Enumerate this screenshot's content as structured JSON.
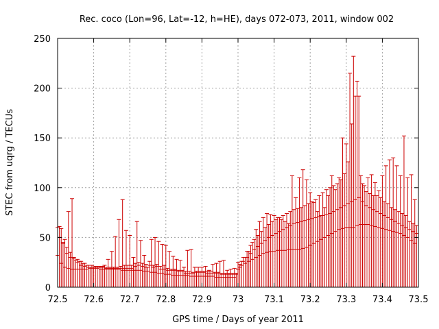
{
  "chart_data": {
    "type": "errorbar",
    "title": "Rec. coco (Lon=96, Lat=-12, h=HE), days 072-073, 2011, window 002",
    "xlabel": "GPS time / Days of year 2011",
    "ylabel": "STEC from uqrg / TECUs",
    "xlim": [
      72.5,
      73.5
    ],
    "ylim": [
      0,
      250
    ],
    "xticks": [
      "72.5",
      "72.6",
      "72.7",
      "72.8",
      "72.9",
      "73",
      "73.1",
      "73.2",
      "73.3",
      "73.4",
      "73.5"
    ],
    "yticks": [
      "0",
      "50",
      "100",
      "150",
      "200",
      "250"
    ],
    "grid": true,
    "color": "#cc0000",
    "series": [
      {
        "x": [
          72.5,
          72.51,
          72.52,
          72.53,
          72.54,
          72.55,
          72.56,
          72.57,
          72.58,
          72.59,
          72.6,
          72.61,
          72.62,
          72.63,
          72.64,
          72.65,
          72.66,
          72.67,
          72.68,
          72.69,
          72.7,
          72.71,
          72.72,
          72.73,
          72.74,
          72.75,
          72.76,
          72.77,
          72.78,
          72.79,
          72.8,
          72.81,
          72.82,
          72.83,
          72.84,
          72.85,
          72.86,
          72.87,
          72.88,
          72.89,
          72.9,
          72.91,
          72.92,
          72.93,
          72.94,
          72.95,
          72.96,
          72.97,
          72.98,
          72.99
        ],
        "y": [
          32,
          24,
          20,
          19,
          18,
          18,
          18,
          18,
          18,
          19,
          19,
          19,
          18,
          18,
          18,
          18,
          18,
          18,
          17,
          17,
          17,
          17,
          17,
          17,
          16,
          16,
          15,
          15,
          14,
          14,
          13,
          13,
          12,
          12,
          12,
          12,
          12,
          11,
          11,
          11,
          11,
          11,
          11,
          11,
          10,
          10,
          10,
          10,
          10,
          10
        ],
        "ymax": [
          60,
          59,
          48,
          76,
          89,
          27,
          26,
          24,
          22,
          20,
          20,
          21,
          21,
          22,
          28,
          36,
          51,
          68,
          88,
          57,
          52,
          30,
          66,
          47,
          32,
          20,
          48,
          50,
          46,
          43,
          42,
          36,
          31,
          28,
          27,
          20,
          37,
          38,
          20,
          20,
          20,
          21,
          17,
          23,
          24,
          26,
          27,
          17,
          18,
          19
        ]
      },
      {
        "x": [
          72.505,
          72.515,
          72.525,
          72.535,
          72.545,
          72.555,
          72.565,
          72.575,
          72.585,
          72.595,
          72.605,
          72.615,
          72.625,
          72.635,
          72.645,
          72.655,
          72.665,
          72.675,
          72.685,
          72.695,
          72.705,
          72.715,
          72.725,
          72.735,
          72.745,
          72.755,
          72.765,
          72.775,
          72.785,
          72.795,
          72.805,
          72.815,
          72.825,
          72.835,
          72.845,
          72.855,
          72.865,
          72.875,
          72.885,
          72.895,
          72.905,
          72.915,
          72.925,
          72.935,
          72.945,
          72.955,
          72.965,
          72.975,
          72.985,
          72.995
        ],
        "y": [
          50,
          45,
          34,
          30,
          29,
          25,
          22,
          21,
          20,
          20,
          20,
          20,
          20,
          19,
          19,
          19,
          19,
          19,
          19,
          19,
          19,
          21,
          22,
          21,
          20,
          22,
          20,
          21,
          18,
          18,
          17,
          17,
          17,
          16,
          16,
          14,
          14,
          14,
          15,
          15,
          15,
          14,
          14,
          14,
          14,
          13,
          13,
          13,
          13,
          13
        ],
        "ymax": [
          61,
          44,
          40,
          35,
          30,
          28,
          26,
          24,
          22,
          22,
          21,
          21,
          21,
          20,
          20,
          20,
          20,
          21,
          22,
          22,
          22,
          24,
          25,
          24,
          23,
          26,
          22,
          23,
          21,
          22,
          19,
          18,
          18,
          17,
          17,
          16,
          16,
          15,
          16,
          16,
          16,
          16,
          16,
          15,
          15,
          14,
          14,
          14,
          14,
          14
        ]
      },
      {
        "x": [
          73.0,
          73.01,
          73.02,
          73.03,
          73.04,
          73.05,
          73.06,
          73.07,
          73.08,
          73.09,
          73.1,
          73.11,
          73.12,
          73.13,
          73.14,
          73.15,
          73.16,
          73.17,
          73.18,
          73.19,
          73.2,
          73.21,
          73.22,
          73.23,
          73.24,
          73.25,
          73.26,
          73.27,
          73.28,
          73.29,
          73.3,
          73.31,
          73.32,
          73.33,
          73.34,
          73.35,
          73.36,
          73.37,
          73.38,
          73.39,
          73.4,
          73.41,
          73.42,
          73.43,
          73.44,
          73.45,
          73.46,
          73.47,
          73.48,
          73.49
        ],
        "y": [
          18,
          22,
          24,
          26,
          28,
          30,
          32,
          34,
          35,
          36,
          36,
          37,
          37,
          37,
          38,
          38,
          38,
          38,
          39,
          40,
          42,
          44,
          46,
          48,
          50,
          52,
          54,
          56,
          58,
          59,
          60,
          60,
          60,
          62,
          63,
          63,
          63,
          62,
          61,
          60,
          59,
          58,
          57,
          56,
          55,
          54,
          52,
          50,
          47,
          44
        ],
        "ymax": [
          25,
          26,
          30,
          36,
          45,
          58,
          66,
          70,
          74,
          73,
          72,
          70,
          68,
          66,
          64,
          112,
          90,
          110,
          118,
          108,
          95,
          85,
          76,
          72,
          80,
          92,
          112,
          98,
          110,
          150,
          144,
          215,
          232,
          207,
          112,
          102,
          110,
          113,
          105,
          97,
          112,
          122,
          128,
          130,
          122,
          112,
          152,
          110,
          113,
          88
        ]
      },
      {
        "x": [
          73.005,
          73.015,
          73.025,
          73.035,
          73.045,
          73.055,
          73.065,
          73.075,
          73.085,
          73.095,
          73.105,
          73.115,
          73.125,
          73.135,
          73.145,
          73.155,
          73.165,
          73.175,
          73.185,
          73.195,
          73.205,
          73.215,
          73.225,
          73.235,
          73.245,
          73.255,
          73.265,
          73.275,
          73.285,
          73.295,
          73.305,
          73.315,
          73.325,
          73.335,
          73.345,
          73.355,
          73.365,
          73.375,
          73.385,
          73.395,
          73.405,
          73.415,
          73.425,
          73.435,
          73.445,
          73.455,
          73.465,
          73.475,
          73.485,
          73.495
        ],
        "y": [
          20,
          26,
          30,
          34,
          38,
          41,
          44,
          47,
          50,
          52,
          54,
          56,
          58,
          60,
          62,
          64,
          65,
          66,
          67,
          68,
          69,
          70,
          71,
          72,
          73,
          74,
          76,
          78,
          80,
          82,
          84,
          86,
          88,
          90,
          86,
          82,
          80,
          78,
          76,
          74,
          72,
          70,
          68,
          66,
          64,
          62,
          60,
          58,
          56,
          54
        ],
        "ymax": [
          23,
          30,
          36,
          42,
          48,
          52,
          56,
          60,
          63,
          66,
          68,
          70,
          72,
          74,
          76,
          78,
          79,
          80,
          82,
          84,
          86,
          88,
          92,
          95,
          98,
          100,
          102,
          104,
          108,
          114,
          126,
          164,
          192,
          192,
          104,
          96,
          94,
          92,
          92,
          90,
          86,
          84,
          80,
          78,
          76,
          74,
          72,
          66,
          64,
          62
        ]
      }
    ]
  }
}
